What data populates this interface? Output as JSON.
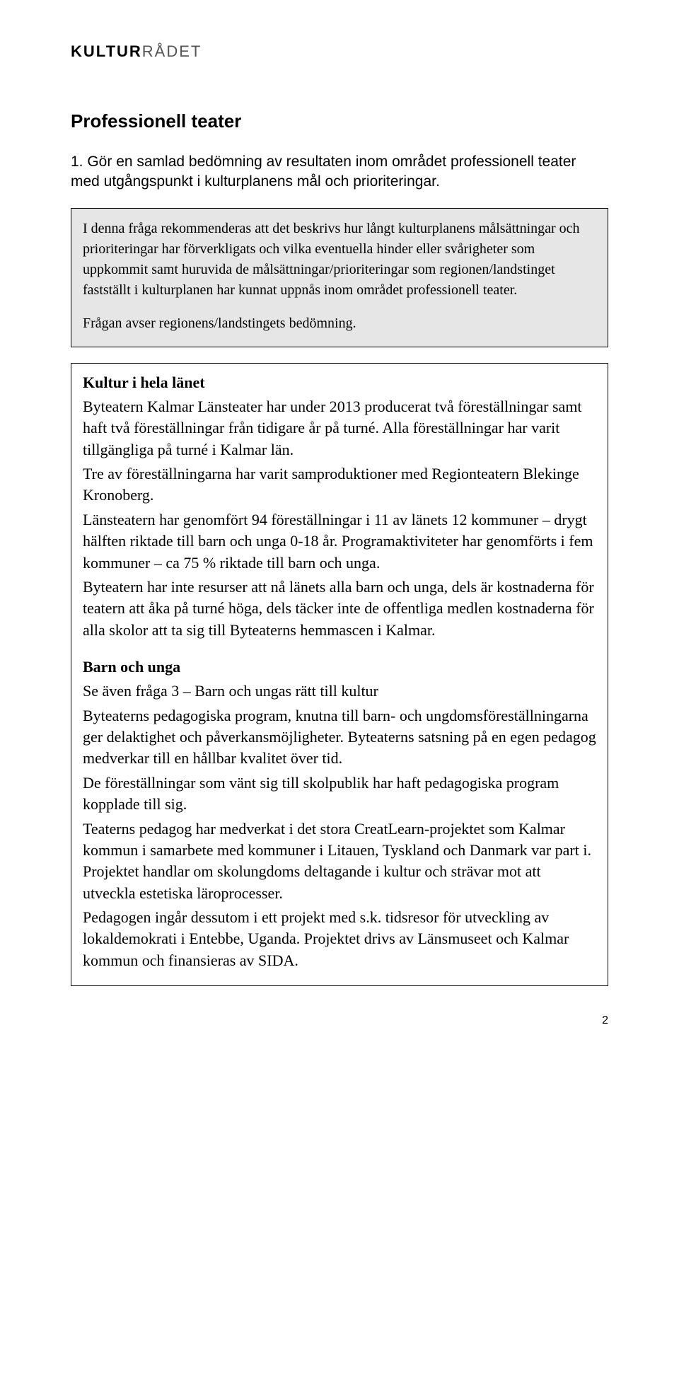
{
  "logo": {
    "bold": "KULTUR",
    "light": "RÅDET"
  },
  "title": "Professionell teater",
  "intro": "1. Gör en samlad bedömning av resultaten inom området professionell teater med utgångspunkt i kulturplanens mål och prioriteringar.",
  "gray": {
    "p1": "I denna fråga rekommenderas att det beskrivs hur långt kulturplanens målsättningar och prioriteringar har förverkligats och vilka eventuella hinder eller svårigheter som uppkommit samt huruvida de målsättningar/prioriteringar som regionen/landstinget fastställt i kulturplanen har kunnat uppnås inom området professionell teater.",
    "p2": "Frågan avser regionens/landstingets bedömning."
  },
  "content": {
    "block1": {
      "heading": "Kultur i hela länet",
      "p1": "Byteatern Kalmar Länsteater har under 2013 producerat två föreställningar samt haft två föreställningar från tidigare år på turné. Alla föreställningar har varit tillgängliga på turné i Kalmar län.",
      "p2": "Tre av föreställningarna har varit samproduktioner med Regionteatern Blekinge Kronoberg.",
      "p3": "Länsteatern har genomfört 94 föreställningar i 11 av länets 12 kommuner – drygt hälften riktade till barn och unga 0-18 år. Programaktiviteter har genomförts i fem kommuner – ca 75 % riktade till barn och unga.",
      "p4": "Byteatern har inte resurser att nå länets alla barn och unga, dels är kostnaderna för teatern att åka på turné höga, dels täcker inte de offentliga medlen kostnaderna för alla skolor att ta sig till Byteaterns hemmascen i Kalmar."
    },
    "block2": {
      "heading": "Barn och unga",
      "p1": "Se även fråga 3 – Barn och ungas rätt till kultur",
      "p2": "Byteaterns pedagogiska program, knutna till barn- och ungdomsföreställningarna ger delaktighet och påverkansmöjligheter. Byteaterns satsning på en egen pedagog medverkar till en hållbar kvalitet över tid.",
      "p3": "De föreställningar som vänt sig till skolpublik har haft pedagogiska program kopplade till sig.",
      "p4": "Teaterns pedagog har medverkat i det stora CreatLearn-projektet som Kalmar kommun i samarbete med kommuner i Litauen, Tyskland och Danmark var part i. Projektet handlar om skolungdoms deltagande i kultur och strävar mot att utveckla estetiska läroprocesser.",
      "p5": "Pedagogen ingår dessutom i ett projekt med s.k. tidsresor för utveckling av lokaldemokrati i Entebbe, Uganda. Projektet drivs av Länsmuseet och Kalmar kommun och finansieras av SIDA."
    }
  },
  "pageNumber": "2"
}
